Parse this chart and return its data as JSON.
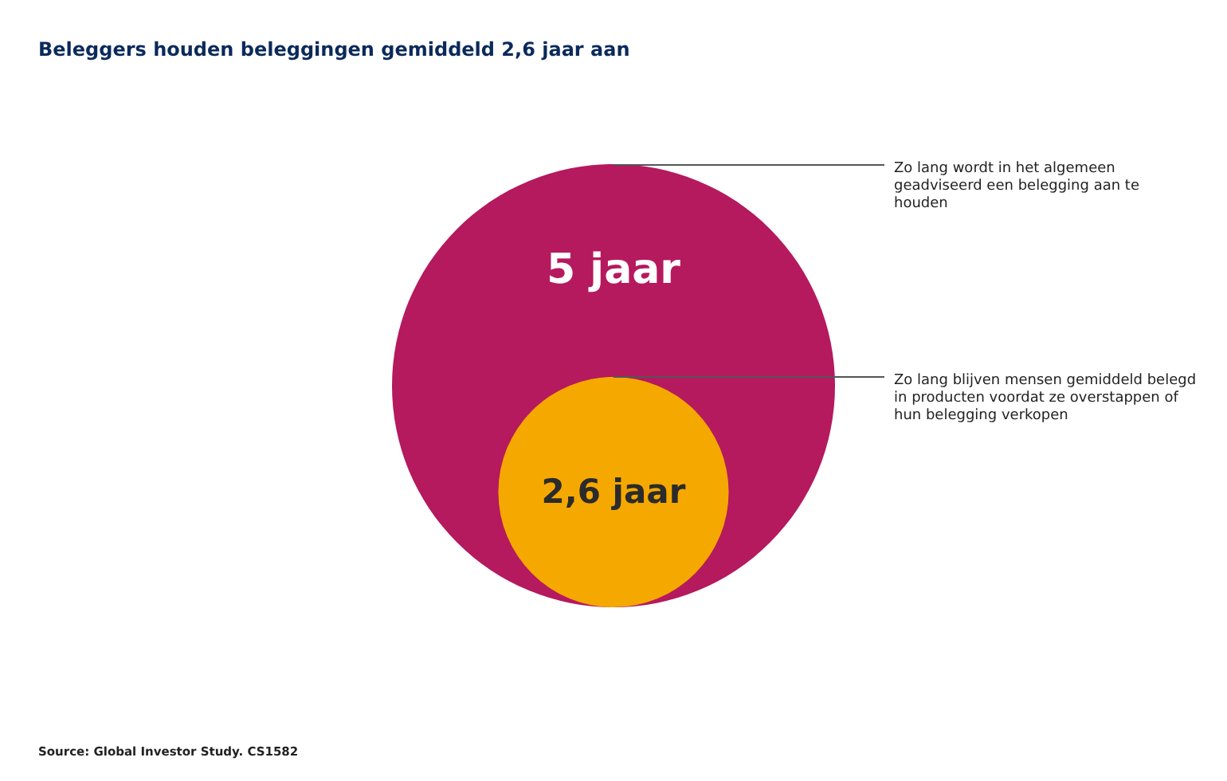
{
  "chart_data": {
    "type": "other",
    "title": "Beleggers houden beleggingen gemiddeld 2,6 jaar aan",
    "values": [
      5,
      2.6
    ],
    "value_labels": [
      "5 jaar",
      "2,6 jaar"
    ],
    "colors": [
      "#b5195e",
      "#f5a800"
    ],
    "annotations": [
      "Zo lang wordt in het algemeen geadviseerd een belegging aan te houden",
      "Zo lang blijven mensen gemiddeld belegd in producten voordat ze overstappen of hun belegging verkopen",
      "Source: Global Investor Study. CS1582"
    ]
  }
}
